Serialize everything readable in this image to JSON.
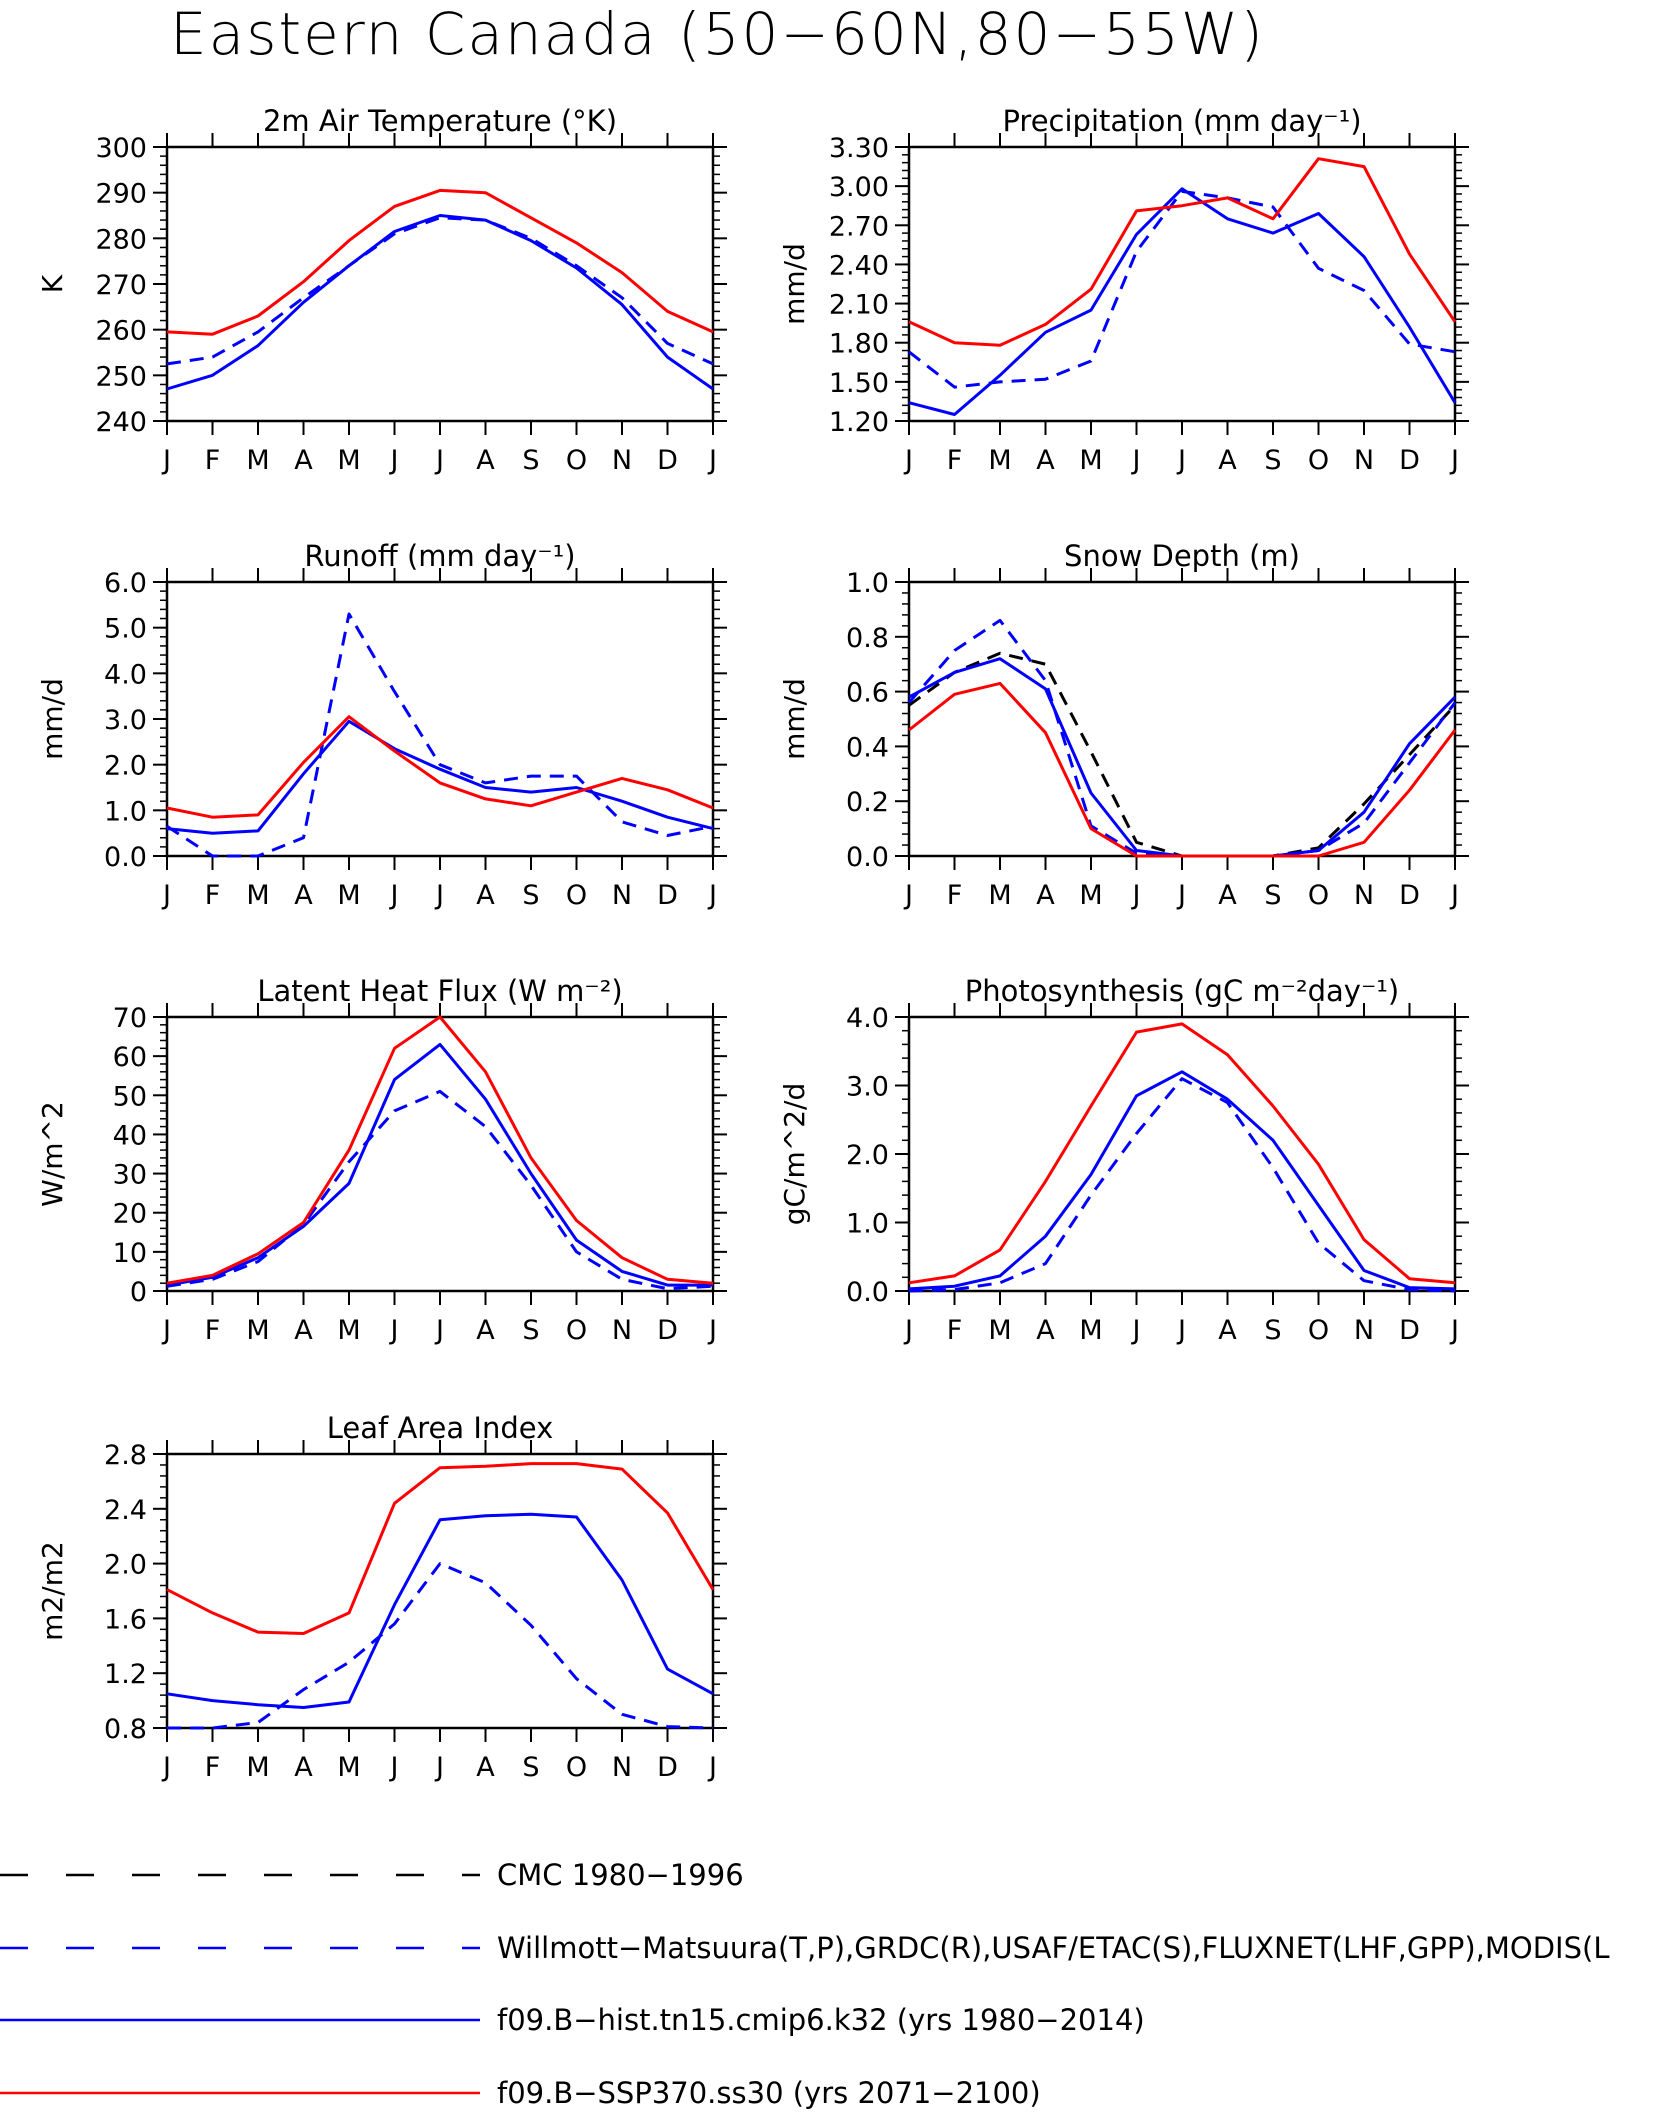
{
  "page_title": "Eastern Canada (50−60N,80−55W)",
  "months": [
    "J",
    "F",
    "M",
    "A",
    "M",
    "J",
    "J",
    "A",
    "S",
    "O",
    "N",
    "D",
    "J"
  ],
  "colors": {
    "black": "#000000",
    "blue": "#0000ff",
    "red": "#ff0000"
  },
  "legend": [
    {
      "label": "CMC 1980−1996",
      "color": "#000000",
      "style": "dashed"
    },
    {
      "label": "Willmott−Matsuura(T,P),GRDC(R),USAF/ETAC(S),FLUXNET(LHF,GPP),MODIS(L",
      "color": "#0000ff",
      "style": "dashed"
    },
    {
      "label": "f09.B−hist.tn15.cmip6.k32 (yrs 1980−2014)",
      "color": "#0000ff",
      "style": "solid"
    },
    {
      "label": "f09.B−SSP370.ss30 (yrs 2071−2100)",
      "color": "#ff0000",
      "style": "solid"
    }
  ],
  "chart_data": [
    {
      "type": "line",
      "title": "2m Air Temperature (°K)",
      "ylabel": "K",
      "ylim": [
        240,
        300
      ],
      "yticks": [
        "240",
        "250",
        "260",
        "270",
        "280",
        "290",
        "300"
      ],
      "series": [
        {
          "color": "blue",
          "style": "dashed",
          "values": [
            252.5,
            254,
            259.5,
            267,
            274,
            281,
            284.5,
            284,
            280,
            274,
            267,
            257,
            252.5
          ]
        },
        {
          "color": "blue",
          "style": "solid",
          "values": [
            247,
            250,
            256.5,
            266,
            274,
            281.5,
            285,
            284,
            279.5,
            273.5,
            265.5,
            254,
            247
          ]
        },
        {
          "color": "red",
          "style": "solid",
          "values": [
            259.5,
            259,
            263,
            270.5,
            279.5,
            287,
            290.5,
            290,
            284.5,
            279,
            272.5,
            264,
            259.5
          ]
        }
      ]
    },
    {
      "type": "line",
      "title": "Precipitation (mm day⁻¹)",
      "ylabel": "mm/d",
      "ylim": [
        1.2,
        3.3
      ],
      "yticks": [
        "1.20",
        "1.50",
        "1.80",
        "2.10",
        "2.40",
        "2.70",
        "3.00",
        "3.30"
      ],
      "series": [
        {
          "color": "blue",
          "style": "dashed",
          "values": [
            1.73,
            1.46,
            1.5,
            1.52,
            1.66,
            2.5,
            2.96,
            2.91,
            2.84,
            2.37,
            2.2,
            1.79,
            1.73
          ]
        },
        {
          "color": "blue",
          "style": "solid",
          "values": [
            1.34,
            1.25,
            1.55,
            1.88,
            2.05,
            2.63,
            2.98,
            2.75,
            2.64,
            2.79,
            2.46,
            1.92,
            1.34
          ]
        },
        {
          "color": "red",
          "style": "solid",
          "values": [
            1.96,
            1.8,
            1.78,
            1.94,
            2.21,
            2.81,
            2.85,
            2.91,
            2.75,
            3.21,
            3.15,
            2.48,
            1.96
          ]
        }
      ]
    },
    {
      "type": "line",
      "title": "Runoff (mm day⁻¹)",
      "ylabel": "mm/d",
      "ylim": [
        0,
        6
      ],
      "yticks": [
        "0.0",
        "1.0",
        "2.0",
        "3.0",
        "4.0",
        "5.0",
        "6.0"
      ],
      "series": [
        {
          "color": "blue",
          "style": "dashed",
          "values": [
            0.65,
            0.0,
            0.0,
            0.4,
            5.3,
            3.6,
            2.0,
            1.6,
            1.75,
            1.75,
            0.75,
            0.45,
            0.65
          ]
        },
        {
          "color": "blue",
          "style": "solid",
          "values": [
            0.6,
            0.5,
            0.55,
            1.8,
            2.95,
            2.35,
            1.9,
            1.5,
            1.4,
            1.5,
            1.2,
            0.85,
            0.6
          ]
        },
        {
          "color": "red",
          "style": "solid",
          "values": [
            1.05,
            0.85,
            0.9,
            2.05,
            3.05,
            2.3,
            1.6,
            1.25,
            1.1,
            1.4,
            1.7,
            1.45,
            1.05
          ]
        }
      ]
    },
    {
      "type": "line",
      "title": "Snow Depth (m)",
      "ylabel": "mm/d",
      "ylim": [
        0,
        1
      ],
      "yticks": [
        "0.0",
        "0.2",
        "0.4",
        "0.6",
        "0.8",
        "1.0"
      ],
      "series": [
        {
          "color": "black",
          "style": "dashed",
          "values": [
            0.55,
            0.67,
            0.74,
            0.7,
            0.38,
            0.05,
            0.0,
            0.0,
            0.0,
            0.03,
            0.19,
            0.37,
            0.55
          ]
        },
        {
          "color": "blue",
          "style": "dashed",
          "values": [
            0.56,
            0.75,
            0.86,
            0.64,
            0.11,
            0.01,
            0.0,
            0.0,
            0.0,
            0.02,
            0.12,
            0.34,
            0.56
          ]
        },
        {
          "color": "blue",
          "style": "solid",
          "values": [
            0.58,
            0.67,
            0.72,
            0.61,
            0.23,
            0.02,
            0.0,
            0.0,
            0.0,
            0.02,
            0.16,
            0.41,
            0.58
          ]
        },
        {
          "color": "red",
          "style": "solid",
          "values": [
            0.46,
            0.59,
            0.63,
            0.45,
            0.1,
            0.0,
            0.0,
            0.0,
            0.0,
            0.0,
            0.05,
            0.24,
            0.46
          ]
        }
      ]
    },
    {
      "type": "line",
      "title": "Latent Heat Flux (W m⁻²)",
      "ylabel": "W/m^2",
      "ylim": [
        0,
        70
      ],
      "yticks": [
        "0",
        "10",
        "20",
        "30",
        "40",
        "50",
        "60",
        "70"
      ],
      "series": [
        {
          "color": "blue",
          "style": "dashed",
          "values": [
            1.2,
            3.0,
            7.5,
            17,
            33,
            46,
            51,
            42,
            27,
            10,
            3,
            0.6,
            1.2
          ]
        },
        {
          "color": "blue",
          "style": "solid",
          "values": [
            1.5,
            3.5,
            8.5,
            16.5,
            27.5,
            54,
            63,
            49,
            30,
            13,
            5,
            1.5,
            1.5
          ]
        },
        {
          "color": "red",
          "style": "solid",
          "values": [
            2.0,
            4.0,
            9.5,
            17.5,
            36,
            62,
            70,
            56,
            34,
            18,
            8.5,
            3,
            2.0
          ]
        }
      ]
    },
    {
      "type": "line",
      "title": "Photosynthesis (gC m⁻²day⁻¹)",
      "ylabel": "gC/m^2/d",
      "ylim": [
        0,
        4
      ],
      "yticks": [
        "0.0",
        "1.0",
        "2.0",
        "3.0",
        "4.0"
      ],
      "series": [
        {
          "color": "blue",
          "style": "dashed",
          "values": [
            0.0,
            0.02,
            0.12,
            0.4,
            1.4,
            2.3,
            3.1,
            2.75,
            1.8,
            0.7,
            0.15,
            0.02,
            0.0
          ]
        },
        {
          "color": "blue",
          "style": "solid",
          "values": [
            0.03,
            0.07,
            0.22,
            0.8,
            1.7,
            2.85,
            3.2,
            2.8,
            2.2,
            1.25,
            0.3,
            0.05,
            0.03
          ]
        },
        {
          "color": "red",
          "style": "solid",
          "values": [
            0.12,
            0.22,
            0.6,
            1.6,
            2.7,
            3.78,
            3.9,
            3.45,
            2.7,
            1.85,
            0.75,
            0.18,
            0.12
          ]
        }
      ]
    },
    {
      "type": "line",
      "title": "Leaf Area Index",
      "ylabel": "m2/m2",
      "ylim": [
        0.8,
        2.8
      ],
      "yticks": [
        "0.8",
        "1.2",
        "1.6",
        "2.0",
        "2.4",
        "2.8"
      ],
      "series": [
        {
          "color": "blue",
          "style": "dashed",
          "values": [
            0.8,
            0.8,
            0.84,
            1.08,
            1.28,
            1.56,
            2.0,
            1.86,
            1.55,
            1.16,
            0.9,
            0.81,
            0.8
          ]
        },
        {
          "color": "blue",
          "style": "solid",
          "values": [
            1.05,
            1.0,
            0.97,
            0.95,
            0.99,
            1.7,
            2.32,
            2.35,
            2.36,
            2.34,
            1.88,
            1.23,
            1.05
          ]
        },
        {
          "color": "red",
          "style": "solid",
          "values": [
            1.81,
            1.64,
            1.5,
            1.49,
            1.64,
            2.44,
            2.7,
            2.71,
            2.73,
            2.73,
            2.69,
            2.37,
            1.81
          ]
        }
      ]
    }
  ]
}
